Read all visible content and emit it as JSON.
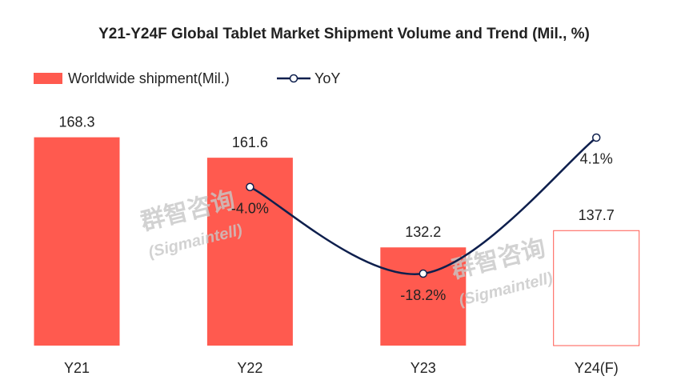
{
  "chart_data": {
    "type": "bar_line",
    "title": "Y21-Y24F Global Tablet Market Shipment Volume and Trend (Mil., %)",
    "categories": [
      "Y21",
      "Y22",
      "Y23",
      "Y24(F)"
    ],
    "series": [
      {
        "name": "Worldwide shipment(Mil.)",
        "type": "bar",
        "color": "#ff5a4f",
        "values": [
          168.3,
          161.6,
          132.2,
          137.7
        ],
        "styles": [
          "filled",
          "filled",
          "filled",
          "outline"
        ]
      },
      {
        "name": "YoY",
        "type": "line",
        "axis": "y2",
        "color": "#0e1f4d",
        "values": [
          null,
          -4.0,
          -18.2,
          4.1
        ],
        "value_labels": [
          null,
          "-4.0%",
          "-18.2%",
          "4.1%"
        ]
      }
    ],
    "ylim": [
      100,
      180
    ],
    "y2lim": [
      -30,
      10
    ],
    "legend": "top-left",
    "watermark": "群智咨询",
    "watermark_sub": "(Sigmaintell)"
  }
}
